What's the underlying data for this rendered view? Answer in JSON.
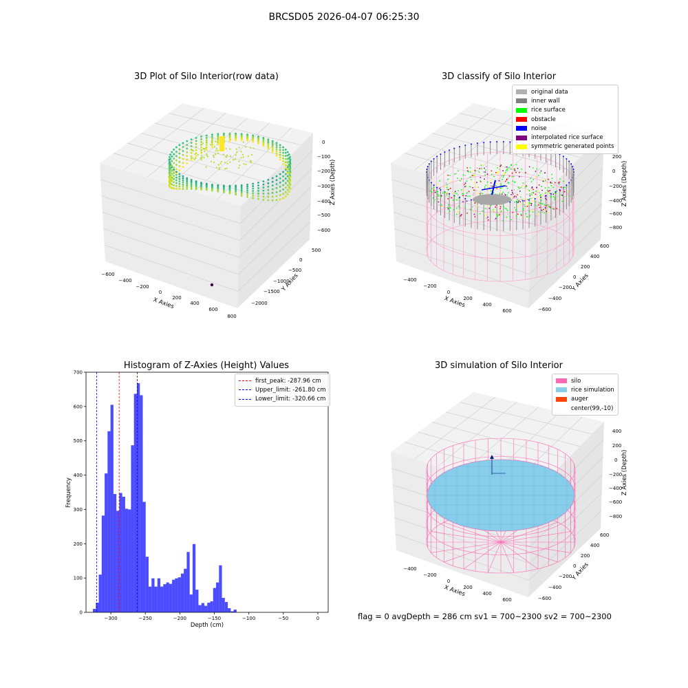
{
  "figure": {
    "title": "BRCSD05 2026-04-07 06:25:30",
    "footer": "flag = 0     avgDepth = 286 cm  sv1 = 700~2300  sv2 = 700~2300"
  },
  "chart_data": [
    {
      "type": "scatter",
      "title": "3D Plot of Silo Interior(row data)",
      "xlabel": "X Axies",
      "ylabel": "Y Axies",
      "zlabel": "Z Axies (Depth)",
      "x_ticks": [
        "−600",
        "−400",
        "−200",
        "0",
        "200",
        "400",
        "600",
        "800"
      ],
      "y_ticks": [
        "500",
        "0",
        "−500",
        "−1000",
        "−1500",
        "−2000"
      ],
      "z_ticks": [
        "0",
        "−100",
        "−200",
        "−300",
        "−400",
        "−500",
        "−600"
      ],
      "colormap": "viridis"
    },
    {
      "type": "scatter",
      "title": "3D classify of Silo Interior",
      "xlabel": "X Axies",
      "ylabel": "Y Axies",
      "zlabel": "Z Axies (Depth)",
      "x_ticks": [
        "−400",
        "−200",
        "0",
        "200",
        "400",
        "600"
      ],
      "y_ticks": [
        "600",
        "400",
        "200",
        "0",
        "−200",
        "−400",
        "−600"
      ],
      "z_ticks": [
        "200",
        "0",
        "−200",
        "−400",
        "−600",
        "−800"
      ],
      "legend": [
        {
          "label": "original data",
          "color": "#b0b0b0"
        },
        {
          "label": "inner wall",
          "color": "#808080"
        },
        {
          "label": "rice surface",
          "color": "#00ff00"
        },
        {
          "label": "obstacle",
          "color": "#ff0000"
        },
        {
          "label": "noise",
          "color": "#0000ff"
        },
        {
          "label": "interpolated rice surface",
          "color": "#800080"
        },
        {
          "label": "symmetric generated points",
          "color": "#ffff00"
        }
      ]
    },
    {
      "type": "bar",
      "title": "Histogram of Z-Axies (Height) Values",
      "xlabel": "Depth (cm)",
      "ylabel": "Frequency",
      "xlim": [
        -336,
        15
      ],
      "ylim": [
        0,
        700
      ],
      "x_ticks": [
        -300,
        -250,
        -200,
        -150,
        -100,
        -50,
        0
      ],
      "x_tick_labels": [
        "−300",
        "−250",
        "−200",
        "−150",
        "−100",
        "−50",
        "0"
      ],
      "y_ticks": [
        0,
        100,
        200,
        300,
        400,
        500,
        600,
        700
      ],
      "bin_start": -326,
      "bin_width": 4.25,
      "values": [
        10,
        28,
        110,
        282,
        405,
        528,
        605,
        345,
        296,
        348,
        337,
        302,
        300,
        487,
        637,
        668,
        633,
        322,
        162,
        75,
        99,
        75,
        99,
        75,
        82,
        87,
        83,
        95,
        99,
        102,
        113,
        127,
        176,
        52,
        199,
        66,
        21,
        27,
        19,
        28,
        32,
        71,
        87,
        137,
        42,
        30,
        12,
        3,
        8
      ],
      "bar_color": "#0000ff",
      "bar_alpha": 0.7,
      "lines": [
        {
          "label": "first_peak: -287.96 cm",
          "x": -287.96,
          "color": "#ff0000"
        },
        {
          "label": "Upper_limit: -261.80 cm",
          "x": -261.8,
          "color": "#0000ff"
        },
        {
          "label": "Lower_limit: -320.66 cm",
          "x": -320.66,
          "color": "#0000ff"
        }
      ],
      "legend_position": "upper right"
    },
    {
      "type": "scatter",
      "title": "3D simulation of Silo Interior",
      "xlabel": "X Axies",
      "ylabel": "Y Axies",
      "zlabel": "Z Axies (Depth)",
      "x_ticks": [
        "−400",
        "−200",
        "0",
        "200",
        "400",
        "600"
      ],
      "y_ticks": [
        "600",
        "400",
        "200",
        "0",
        "−200",
        "−400",
        "−600"
      ],
      "z_ticks": [
        "400",
        "200",
        "0",
        "−200",
        "−400",
        "−600",
        "−800"
      ],
      "legend": [
        {
          "label": "silo",
          "color": "#ff69b4"
        },
        {
          "label": "rice simulation",
          "color": "#87ceeb"
        },
        {
          "label": "auger",
          "color": "#ff4500"
        },
        {
          "label": "center(99,-10)",
          "color": ""
        }
      ]
    }
  ]
}
